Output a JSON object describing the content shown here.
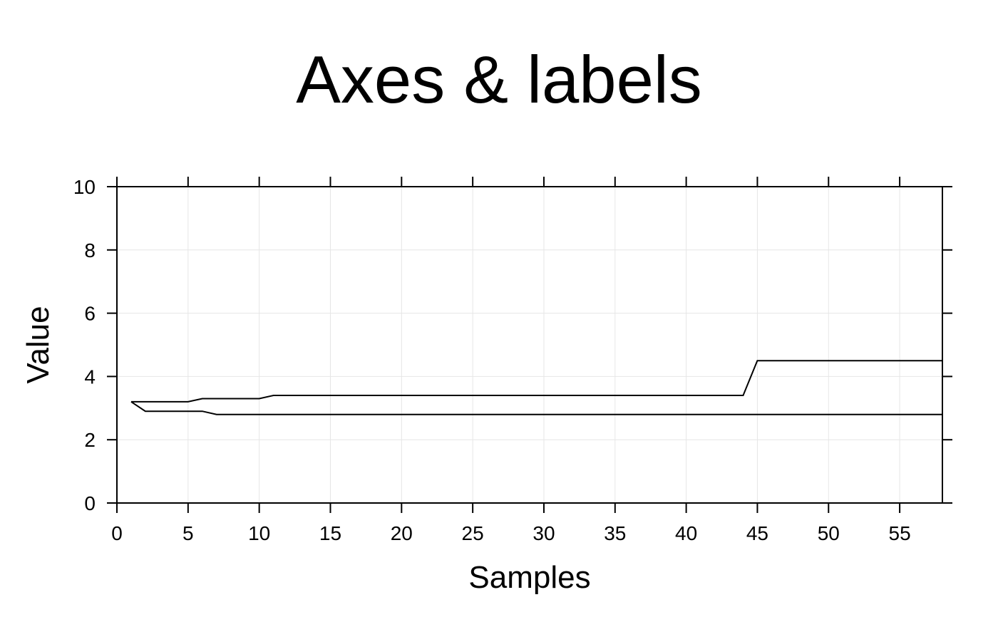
{
  "chart_data": {
    "type": "line",
    "title": "Axes & labels",
    "xlabel": "Samples",
    "ylabel": "Value",
    "xlim": [
      0,
      58
    ],
    "ylim": [
      0,
      10
    ],
    "xticks": [
      0,
      5,
      10,
      15,
      20,
      25,
      30,
      35,
      40,
      45,
      50,
      55
    ],
    "yticks": [
      0,
      2,
      4,
      6,
      8,
      10
    ],
    "grid": true,
    "series": [
      {
        "color": "#000000",
        "x": [
          1,
          5,
          6,
          10,
          11,
          44,
          45,
          58
        ],
        "y": [
          3.2,
          3.2,
          3.3,
          3.3,
          3.4,
          3.4,
          4.5,
          4.5
        ]
      },
      {
        "color": "#000000",
        "x": [
          1,
          2,
          6,
          7,
          58
        ],
        "y": [
          3.2,
          2.9,
          2.9,
          2.8,
          2.8
        ]
      }
    ]
  }
}
